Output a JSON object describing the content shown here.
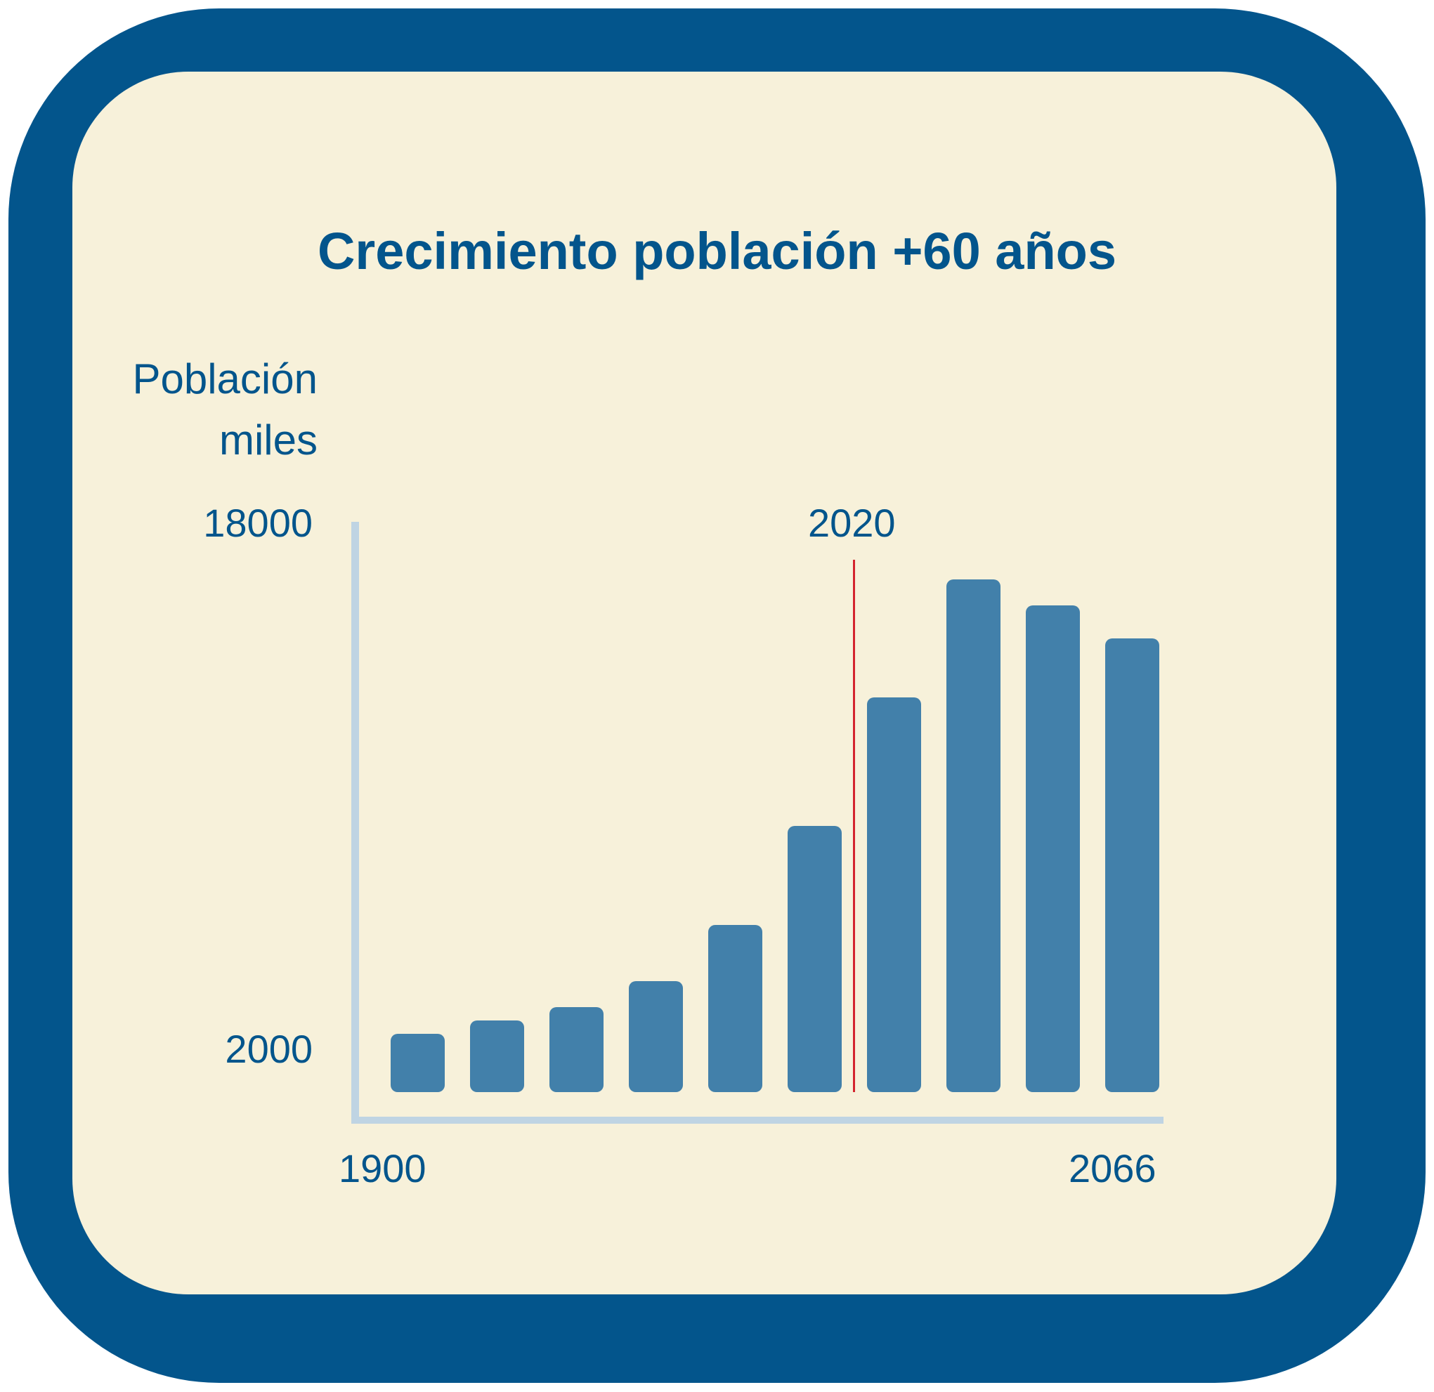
{
  "title": "Crecimiento población +60 años",
  "y_axis": {
    "label_line1": "Población",
    "label_line2": "miles",
    "tick_top": "18000",
    "tick_bottom": "2000"
  },
  "x_axis": {
    "tick_start": "1900",
    "tick_end": "2066"
  },
  "marker": {
    "label": "2020",
    "color": "#D4242E"
  },
  "colors": {
    "frame": "#03558C",
    "panel": "#F7F1DA",
    "bar": "#4280AA",
    "axis": "#BFD4E3",
    "text": "#03558C"
  },
  "chart_data": {
    "type": "bar",
    "title": "Crecimiento población +60 años",
    "xlabel": "",
    "ylabel": "Población miles",
    "x_range_labels": [
      "1900",
      "2066"
    ],
    "y_tick_labels": [
      "2000",
      "18000"
    ],
    "ylim": [
      2000,
      18000
    ],
    "grid": false,
    "legend": null,
    "annotations": [
      {
        "type": "vertical-line",
        "label": "2020",
        "position": "between bar 6 and bar 7",
        "color": "#D4242E"
      }
    ],
    "categories": [
      "1",
      "2",
      "3",
      "4",
      "5",
      "6",
      "7",
      "8",
      "9",
      "10"
    ],
    "values": [
      2500,
      2900,
      3300,
      4100,
      5800,
      8800,
      12700,
      16300,
      15500,
      14500
    ]
  }
}
